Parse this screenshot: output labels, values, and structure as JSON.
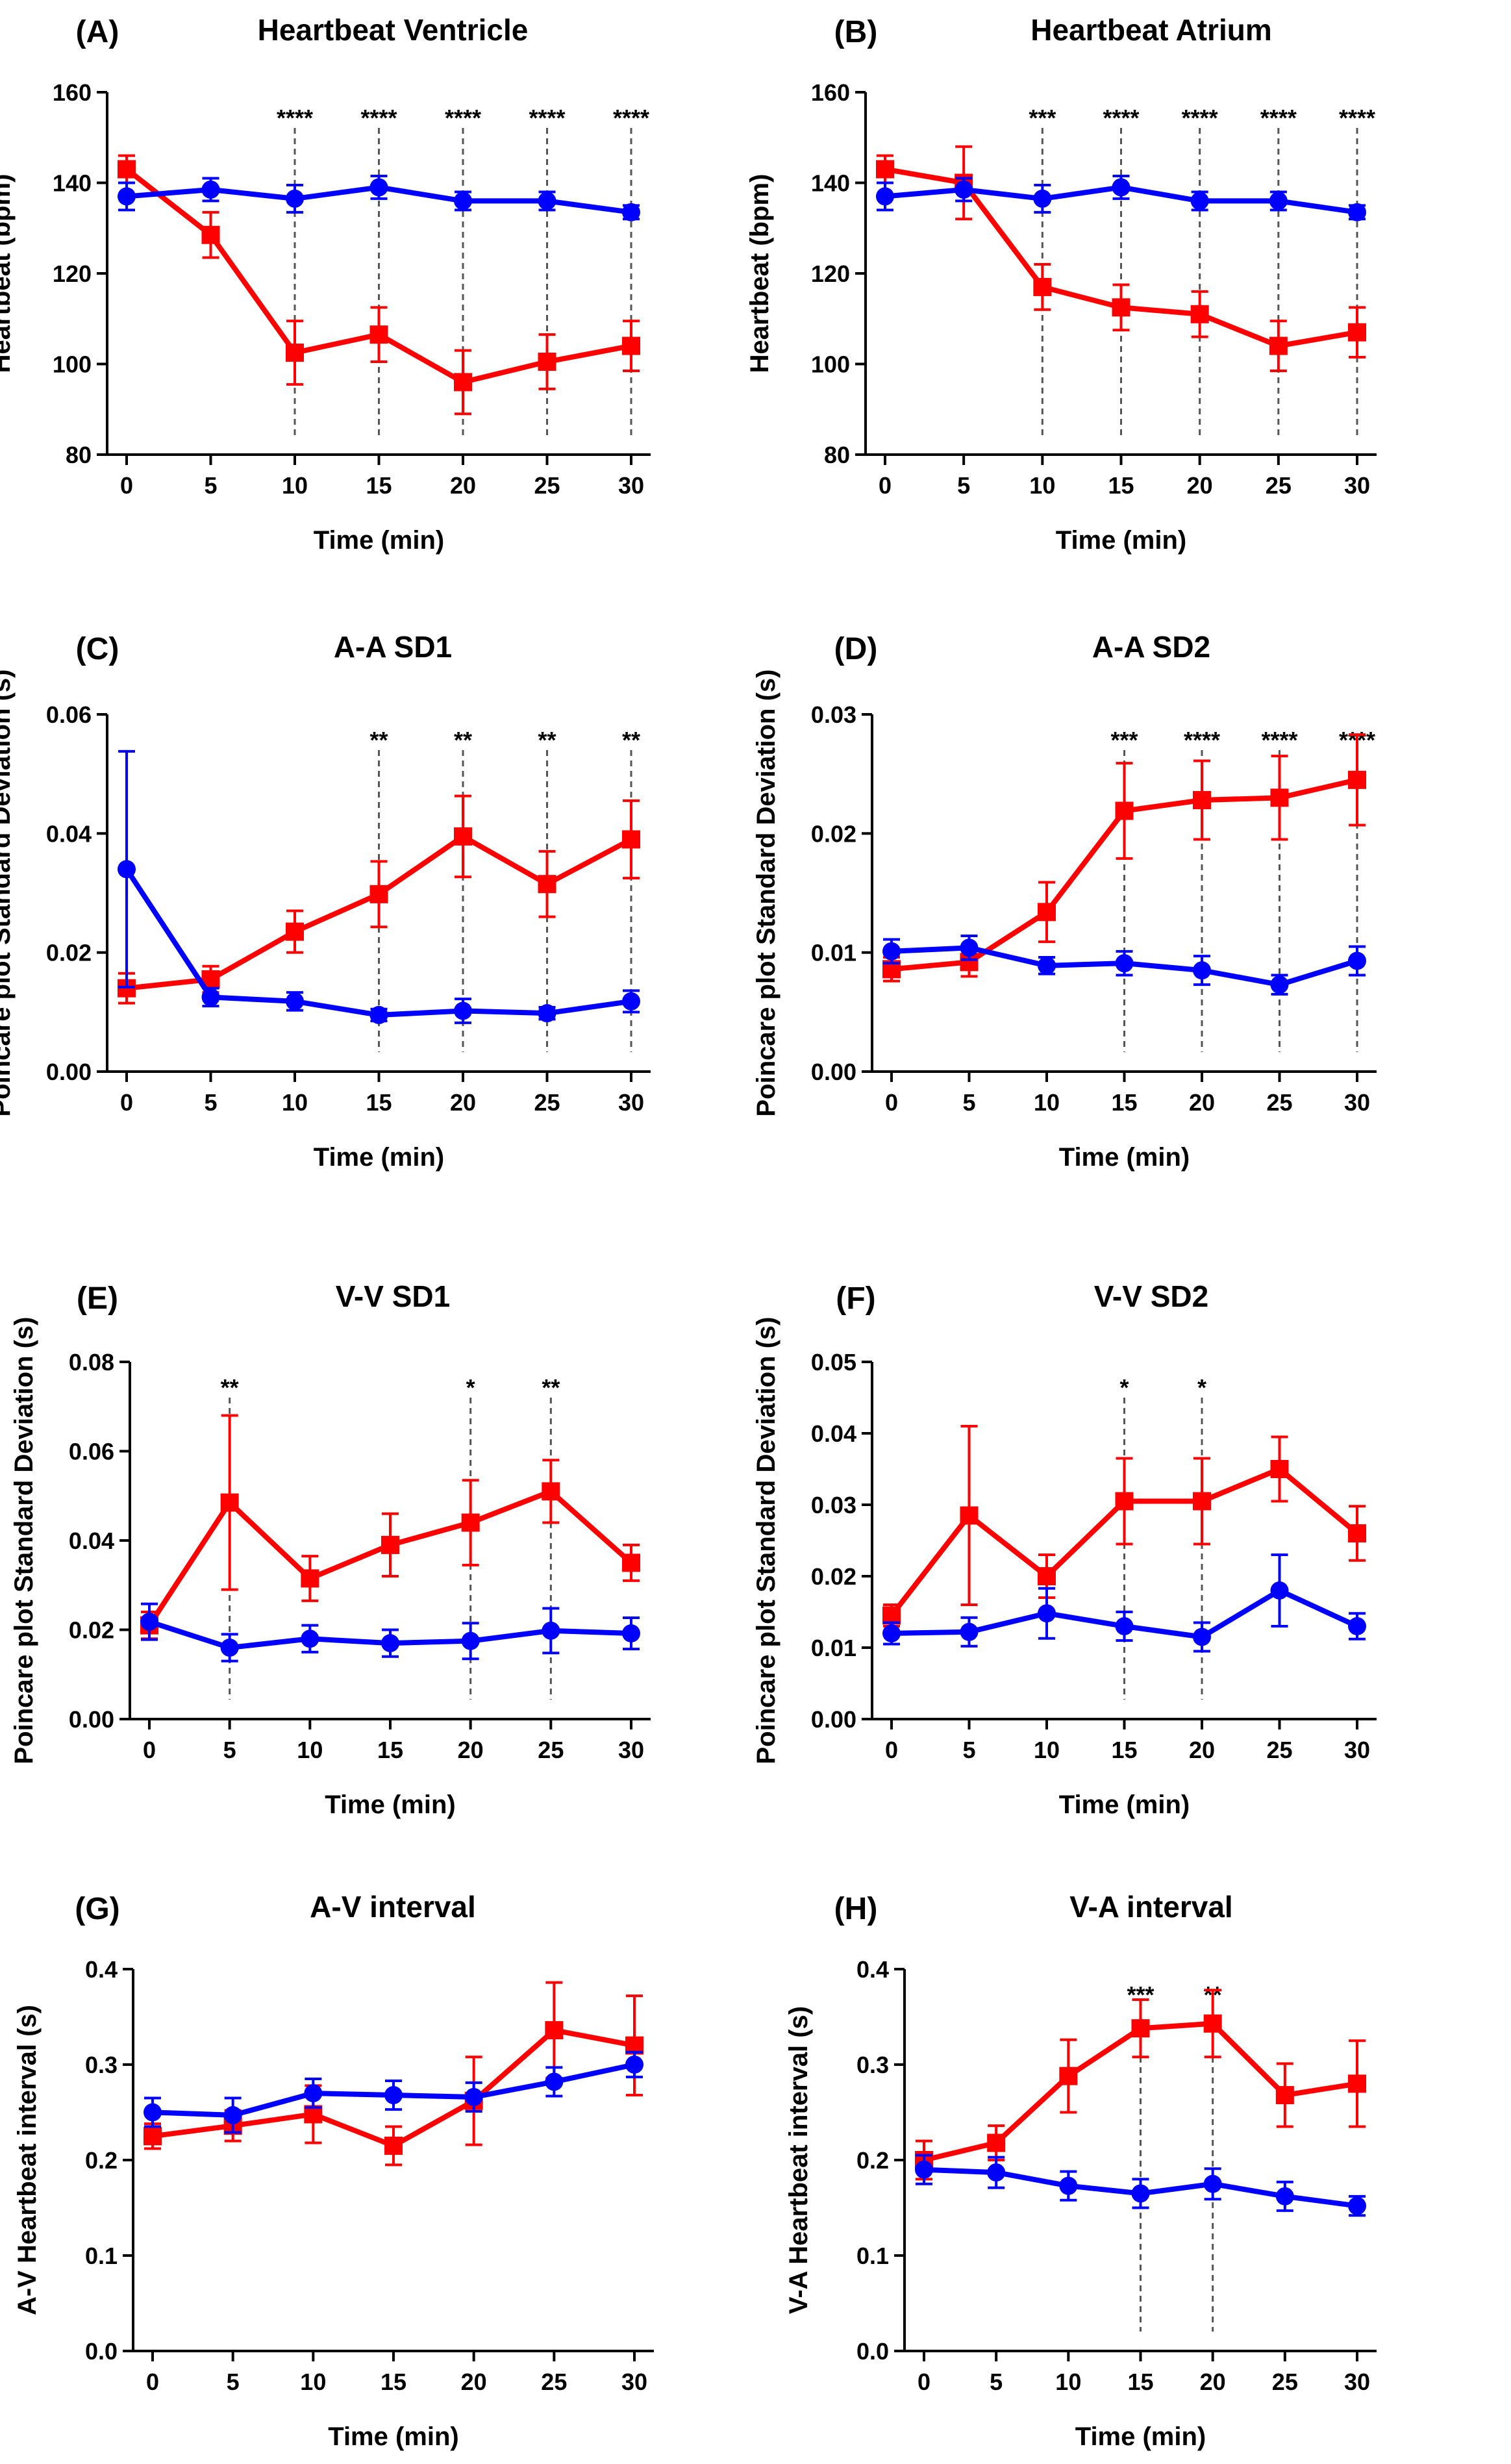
{
  "figure": {
    "x_ticks": [
      "0",
      "5",
      "10",
      "15",
      "20",
      "25",
      "30"
    ],
    "colors": {
      "red": "#ff0000",
      "blue": "#0000ff",
      "axis": "#000000",
      "dash": "#555555"
    }
  },
  "chart_data": [
    {
      "type": "line",
      "panel": "(A)",
      "title": "Heartbeat Ventricle",
      "xlabel": "Time (min)",
      "ylabel": "Heartbeat (bpm)",
      "x": [
        0,
        5,
        10,
        15,
        20,
        25,
        30
      ],
      "ylim": [
        80,
        160
      ],
      "yticks": [
        "80",
        "100",
        "120",
        "140",
        "160"
      ],
      "series": [
        {
          "name": "red",
          "marker": "square",
          "values": [
            143,
            128.5,
            102.5,
            106.5,
            96,
            100.5,
            104
          ],
          "errors": [
            3,
            5,
            7,
            6,
            7,
            6,
            5.5
          ]
        },
        {
          "name": "blue",
          "marker": "circle",
          "values": [
            137,
            138.5,
            136.5,
            139,
            136,
            136,
            133.5
          ],
          "errors": [
            3,
            2.5,
            3,
            2.5,
            2,
            2,
            1.5
          ]
        }
      ],
      "significance": [
        {
          "x": 10,
          "label": "****"
        },
        {
          "x": 15,
          "label": "****"
        },
        {
          "x": 20,
          "label": "****"
        },
        {
          "x": 25,
          "label": "****"
        },
        {
          "x": 30,
          "label": "****"
        }
      ]
    },
    {
      "type": "line",
      "panel": "(B)",
      "title": "Heartbeat Atrium",
      "xlabel": "Time (min)",
      "ylabel": "Heartbeat (bpm)",
      "x": [
        0,
        5,
        10,
        15,
        20,
        25,
        30
      ],
      "ylim": [
        80,
        160
      ],
      "yticks": [
        "80",
        "100",
        "120",
        "140",
        "160"
      ],
      "series": [
        {
          "name": "red",
          "marker": "square",
          "values": [
            143,
            140,
            117,
            112.5,
            111,
            104,
            107
          ],
          "errors": [
            3,
            8,
            5,
            5,
            5,
            5.5,
            5.5
          ]
        },
        {
          "name": "blue",
          "marker": "circle",
          "values": [
            137,
            138.5,
            136.5,
            139,
            136,
            136,
            133.5
          ],
          "errors": [
            3,
            2.5,
            3,
            2.5,
            2,
            2,
            1.5
          ]
        }
      ],
      "significance": [
        {
          "x": 10,
          "label": "***"
        },
        {
          "x": 15,
          "label": "****"
        },
        {
          "x": 20,
          "label": "****"
        },
        {
          "x": 25,
          "label": "****"
        },
        {
          "x": 30,
          "label": "****"
        }
      ]
    },
    {
      "type": "line",
      "panel": "(C)",
      "title": "A-A SD1",
      "xlabel": "Time (min)",
      "ylabel": "Poincare plot Standard Deviation (s)",
      "x": [
        0,
        5,
        10,
        15,
        20,
        25,
        30
      ],
      "ylim": [
        0,
        0.06
      ],
      "yticks": [
        "0.00",
        "0.02",
        "0.04",
        "0.06"
      ],
      "series": [
        {
          "name": "red",
          "marker": "square",
          "values": [
            0.014,
            0.0155,
            0.0235,
            0.0298,
            0.0395,
            0.0315,
            0.039
          ],
          "errors": [
            0.0025,
            0.0022,
            0.0035,
            0.0055,
            0.0068,
            0.0055,
            0.0065
          ]
        },
        {
          "name": "blue",
          "marker": "circle",
          "values": [
            0.034,
            0.0125,
            0.0118,
            0.0095,
            0.0102,
            0.0098,
            0.0118
          ],
          "errors": [
            0.0198,
            0.0015,
            0.0015,
            0.001,
            0.002,
            0.001,
            0.0018
          ]
        }
      ],
      "significance": [
        {
          "x": 15,
          "label": "**"
        },
        {
          "x": 20,
          "label": "**"
        },
        {
          "x": 25,
          "label": "**"
        },
        {
          "x": 30,
          "label": "**"
        }
      ]
    },
    {
      "type": "line",
      "panel": "(D)",
      "title": "A-A SD2",
      "xlabel": "Time (min)",
      "ylabel": "Poincare plot Standard Deviation (s)",
      "x": [
        0,
        5,
        10,
        15,
        20,
        25,
        30
      ],
      "ylim": [
        0,
        0.03
      ],
      "yticks": [
        "0.00",
        "0.01",
        "0.02",
        "0.03"
      ],
      "series": [
        {
          "name": "red",
          "marker": "square",
          "values": [
            0.0086,
            0.0092,
            0.0134,
            0.0219,
            0.0228,
            0.023,
            0.0245
          ],
          "errors": [
            0.001,
            0.0012,
            0.0025,
            0.004,
            0.0033,
            0.0035,
            0.0038
          ]
        },
        {
          "name": "blue",
          "marker": "circle",
          "values": [
            0.0101,
            0.0104,
            0.0089,
            0.0091,
            0.0085,
            0.0073,
            0.0093
          ],
          "errors": [
            0.001,
            0.001,
            0.0007,
            0.001,
            0.0012,
            0.0008,
            0.0012
          ]
        }
      ],
      "significance": [
        {
          "x": 15,
          "label": "***"
        },
        {
          "x": 20,
          "label": "****"
        },
        {
          "x": 25,
          "label": "****"
        },
        {
          "x": 30,
          "label": "****"
        }
      ]
    },
    {
      "type": "line",
      "panel": "(E)",
      "title": "V-V SD1",
      "xlabel": "Time (min)",
      "ylabel": "Poincare plot Standard Deviation (s)",
      "x": [
        0,
        5,
        10,
        15,
        20,
        25,
        30
      ],
      "ylim": [
        0,
        0.08
      ],
      "yticks": [
        "0.00",
        "0.02",
        "0.04",
        "0.06",
        "0.08"
      ],
      "series": [
        {
          "name": "red",
          "marker": "square",
          "values": [
            0.021,
            0.0485,
            0.0315,
            0.039,
            0.044,
            0.051,
            0.035
          ],
          "errors": [
            0.003,
            0.0195,
            0.005,
            0.007,
            0.0095,
            0.007,
            0.004
          ]
        },
        {
          "name": "blue",
          "marker": "circle",
          "values": [
            0.0218,
            0.016,
            0.018,
            0.017,
            0.0175,
            0.0198,
            0.0192
          ],
          "errors": [
            0.004,
            0.003,
            0.003,
            0.003,
            0.004,
            0.005,
            0.0035
          ]
        }
      ],
      "significance": [
        {
          "x": 5,
          "label": "**"
        },
        {
          "x": 20,
          "label": "*"
        },
        {
          "x": 25,
          "label": "**"
        }
      ]
    },
    {
      "type": "line",
      "panel": "(F)",
      "title": "V-V SD2",
      "xlabel": "Time (min)",
      "ylabel": "Poincare plot Standard Deviation (s)",
      "x": [
        0,
        5,
        10,
        15,
        20,
        25,
        30
      ],
      "ylim": [
        0,
        0.05
      ],
      "yticks": [
        "0.00",
        "0.01",
        "0.02",
        "0.03",
        "0.04",
        "0.05"
      ],
      "series": [
        {
          "name": "red",
          "marker": "square",
          "values": [
            0.0145,
            0.0285,
            0.02,
            0.0305,
            0.0305,
            0.035,
            0.026
          ],
          "errors": [
            0.0015,
            0.0125,
            0.003,
            0.006,
            0.006,
            0.0045,
            0.0038
          ]
        },
        {
          "name": "blue",
          "marker": "circle",
          "values": [
            0.012,
            0.0122,
            0.0148,
            0.013,
            0.0115,
            0.018,
            0.013
          ],
          "errors": [
            0.0015,
            0.002,
            0.0035,
            0.002,
            0.002,
            0.005,
            0.0018
          ]
        }
      ],
      "significance": [
        {
          "x": 15,
          "label": "*"
        },
        {
          "x": 20,
          "label": "*"
        }
      ]
    },
    {
      "type": "line",
      "panel": "(G)",
      "title": "A-V interval",
      "xlabel": "Time (min)",
      "ylabel": "A-V Heartbeat interval (s)",
      "x": [
        0,
        5,
        10,
        15,
        20,
        25,
        30
      ],
      "ylim": [
        0,
        0.4
      ],
      "yticks": [
        "0.0",
        "0.1",
        "0.2",
        "0.3",
        "0.4"
      ],
      "series": [
        {
          "name": "red",
          "marker": "square",
          "values": [
            0.225,
            0.236,
            0.248,
            0.215,
            0.262,
            0.336,
            0.32
          ],
          "errors": [
            0.013,
            0.016,
            0.03,
            0.02,
            0.046,
            0.05,
            0.052
          ]
        },
        {
          "name": "blue",
          "marker": "circle",
          "values": [
            0.25,
            0.247,
            0.27,
            0.268,
            0.266,
            0.282,
            0.3
          ],
          "errors": [
            0.015,
            0.018,
            0.015,
            0.015,
            0.015,
            0.015,
            0.013
          ]
        }
      ],
      "significance": []
    },
    {
      "type": "line",
      "panel": "(H)",
      "title": "V-A interval",
      "xlabel": "Time (min)",
      "ylabel": "V-A Heartbeat interval (s)",
      "x": [
        0,
        5,
        10,
        15,
        20,
        25,
        30
      ],
      "ylim": [
        0,
        0.4
      ],
      "yticks": [
        "0.0",
        "0.1",
        "0.2",
        "0.3",
        "0.4"
      ],
      "series": [
        {
          "name": "red",
          "marker": "square",
          "values": [
            0.2,
            0.218,
            0.288,
            0.338,
            0.343,
            0.268,
            0.28
          ],
          "errors": [
            0.02,
            0.018,
            0.038,
            0.03,
            0.035,
            0.033,
            0.045
          ]
        },
        {
          "name": "blue",
          "marker": "circle",
          "values": [
            0.19,
            0.187,
            0.173,
            0.165,
            0.175,
            0.162,
            0.152
          ],
          "errors": [
            0.015,
            0.016,
            0.015,
            0.015,
            0.016,
            0.015,
            0.01
          ]
        }
      ],
      "significance": [
        {
          "x": 15,
          "label": "***"
        },
        {
          "x": 20,
          "label": "**"
        }
      ]
    }
  ]
}
